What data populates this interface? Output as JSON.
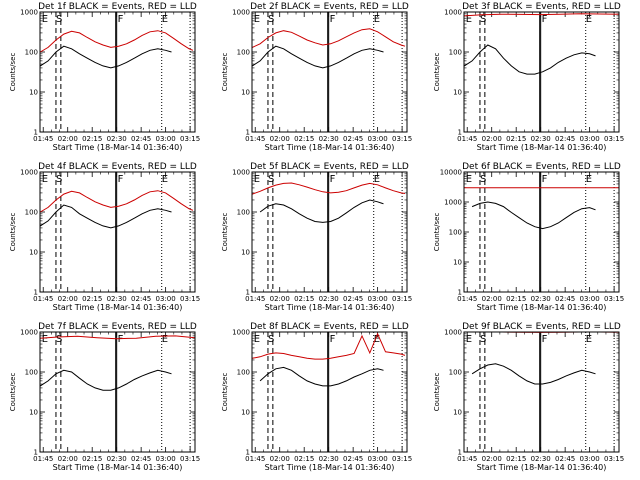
{
  "chart_data": [
    {
      "type": "line",
      "title": "Det 1f BLACK = Events, RED = LLD",
      "xlabel": "Start Time (18-Mar-14 01:36:40)",
      "ylabel": "Counts/sec",
      "yscale": "log",
      "ylim": [
        1,
        1000
      ],
      "y_ticks": [
        "1",
        "10",
        "100",
        "1000"
      ],
      "xlim": [
        1.717,
        3.3
      ],
      "x_ticks": [
        "01:45",
        "02:00",
        "02:15",
        "02:30",
        "02:45",
        "03:00",
        "03:15"
      ],
      "markers": [
        "E",
        "S",
        "F",
        "E"
      ],
      "series": [
        {
          "name": "Events",
          "color": "#000000",
          "x": [
            1.72,
            1.8,
            1.88,
            1.96,
            2.04,
            2.12,
            2.2,
            2.28,
            2.36,
            2.44,
            2.52,
            2.6,
            2.68,
            2.76,
            2.84,
            2.92,
            3.0,
            3.06
          ],
          "y": [
            45,
            60,
            100,
            140,
            120,
            90,
            70,
            55,
            45,
            40,
            45,
            55,
            70,
            90,
            110,
            120,
            110,
            100
          ]
        },
        {
          "name": "LLD",
          "color": "#cc0000",
          "x": [
            1.72,
            1.8,
            1.88,
            1.96,
            2.04,
            2.12,
            2.2,
            2.28,
            2.36,
            2.44,
            2.52,
            2.6,
            2.68,
            2.76,
            2.84,
            2.92,
            3.0,
            3.08,
            3.16,
            3.24,
            3.28
          ],
          "y": [
            100,
            130,
            200,
            280,
            330,
            300,
            230,
            180,
            150,
            130,
            140,
            160,
            200,
            260,
            320,
            340,
            300,
            220,
            160,
            120,
            110
          ]
        }
      ]
    },
    {
      "type": "line",
      "title": "Det 2f BLACK = Events, RED = LLD",
      "xlabel": "Start Time (18-Mar-14 01:36:40)",
      "ylabel": "Counts/sec",
      "yscale": "log",
      "ylim": [
        1,
        1000
      ],
      "y_ticks": [
        "1",
        "10",
        "100",
        "1000"
      ],
      "xlim": [
        1.717,
        3.3
      ],
      "x_ticks": [
        "01:45",
        "02:00",
        "02:15",
        "02:30",
        "02:45",
        "03:00",
        "03:15"
      ],
      "markers": [
        "E",
        "S",
        "F",
        "E"
      ],
      "series": [
        {
          "name": "Events",
          "color": "#000000",
          "x": [
            1.72,
            1.8,
            1.88,
            1.96,
            2.04,
            2.12,
            2.2,
            2.28,
            2.36,
            2.44,
            2.52,
            2.6,
            2.68,
            2.76,
            2.84,
            2.92,
            3.0,
            3.06
          ],
          "y": [
            45,
            60,
            100,
            140,
            120,
            90,
            70,
            55,
            45,
            40,
            45,
            55,
            70,
            90,
            110,
            120,
            110,
            100
          ]
        },
        {
          "name": "LLD",
          "color": "#cc0000",
          "x": [
            1.72,
            1.8,
            1.88,
            1.96,
            2.04,
            2.12,
            2.2,
            2.28,
            2.36,
            2.44,
            2.52,
            2.6,
            2.68,
            2.76,
            2.84,
            2.92,
            3.0,
            3.08,
            3.16,
            3.24,
            3.28
          ],
          "y": [
            130,
            160,
            230,
            300,
            340,
            310,
            250,
            200,
            170,
            150,
            160,
            190,
            240,
            300,
            360,
            380,
            320,
            240,
            180,
            150,
            140
          ]
        }
      ]
    },
    {
      "type": "line",
      "title": "Det 3f BLACK = Events, RED = LLD",
      "xlabel": "Start Time (18-Mar-14 01:36:40)",
      "ylabel": "Counts/sec",
      "yscale": "log",
      "ylim": [
        1,
        1000
      ],
      "y_ticks": [
        "1",
        "10",
        "100",
        "1000"
      ],
      "xlim": [
        1.717,
        3.3
      ],
      "x_ticks": [
        "01:45",
        "02:00",
        "02:15",
        "02:30",
        "02:45",
        "03:00",
        "03:15"
      ],
      "markers": [
        "E",
        "S",
        "F",
        "E"
      ],
      "series": [
        {
          "name": "Events",
          "color": "#000000",
          "x": [
            1.72,
            1.8,
            1.88,
            1.96,
            2.04,
            2.12,
            2.2,
            2.28,
            2.36,
            2.44,
            2.52,
            2.6,
            2.68,
            2.76,
            2.84,
            2.92,
            3.0,
            3.06
          ],
          "y": [
            45,
            60,
            100,
            150,
            120,
            70,
            45,
            32,
            28,
            28,
            32,
            40,
            55,
            70,
            85,
            95,
            90,
            80
          ]
        },
        {
          "name": "LLD",
          "color": "#cc0000",
          "x": [
            1.72,
            1.9,
            2.1,
            2.3,
            2.5,
            2.7,
            2.9,
            3.1,
            3.3
          ],
          "y": [
            800,
            850,
            880,
            870,
            860,
            880,
            900,
            890,
            880
          ]
        }
      ]
    },
    {
      "type": "line",
      "title": "Det 4f BLACK = Events, RED = LLD",
      "xlabel": "Start Time (18-Mar-14 01:36:40)",
      "ylabel": "Counts/sec",
      "yscale": "log",
      "ylim": [
        1,
        1000
      ],
      "y_ticks": [
        "1",
        "10",
        "100",
        "1000"
      ],
      "xlim": [
        1.717,
        3.3
      ],
      "x_ticks": [
        "01:45",
        "02:00",
        "02:15",
        "02:30",
        "02:45",
        "03:00",
        "03:15"
      ],
      "markers": [
        "E",
        "S",
        "F",
        "E"
      ],
      "series": [
        {
          "name": "Events",
          "color": "#000000",
          "x": [
            1.72,
            1.8,
            1.88,
            1.96,
            2.04,
            2.12,
            2.2,
            2.28,
            2.36,
            2.44,
            2.52,
            2.6,
            2.68,
            2.76,
            2.84,
            2.92,
            3.0,
            3.06
          ],
          "y": [
            45,
            60,
            100,
            150,
            130,
            90,
            70,
            55,
            45,
            40,
            45,
            55,
            70,
            90,
            110,
            120,
            110,
            100
          ]
        },
        {
          "name": "LLD",
          "color": "#cc0000",
          "x": [
            1.72,
            1.8,
            1.88,
            1.96,
            2.04,
            2.12,
            2.2,
            2.28,
            2.36,
            2.44,
            2.52,
            2.6,
            2.68,
            2.76,
            2.84,
            2.92,
            3.0,
            3.08,
            3.16,
            3.24,
            3.28
          ],
          "y": [
            100,
            130,
            200,
            280,
            330,
            300,
            230,
            180,
            150,
            130,
            140,
            160,
            200,
            260,
            320,
            340,
            300,
            220,
            160,
            120,
            110
          ]
        }
      ]
    },
    {
      "type": "line",
      "title": "Det 5f BLACK = Events, RED = LLD",
      "xlabel": "Start Time (18-Mar-14 01:36:40)",
      "ylabel": "Counts/sec",
      "yscale": "log",
      "ylim": [
        1,
        1000
      ],
      "y_ticks": [
        "1",
        "10",
        "100",
        "1000"
      ],
      "xlim": [
        1.717,
        3.3
      ],
      "x_ticks": [
        "01:45",
        "02:00",
        "02:15",
        "02:30",
        "02:45",
        "03:00",
        "03:15"
      ],
      "markers": [
        "E",
        "S",
        "F",
        "E"
      ],
      "series": [
        {
          "name": "Events",
          "color": "#000000",
          "x": [
            1.8,
            1.88,
            1.96,
            2.04,
            2.12,
            2.2,
            2.28,
            2.36,
            2.44,
            2.52,
            2.6,
            2.68,
            2.76,
            2.84,
            2.92,
            3.0,
            3.06
          ],
          "y": [
            100,
            140,
            160,
            150,
            120,
            90,
            70,
            58,
            55,
            58,
            70,
            95,
            130,
            170,
            200,
            180,
            160
          ]
        },
        {
          "name": "LLD",
          "color": "#cc0000",
          "x": [
            1.72,
            1.8,
            1.88,
            1.96,
            2.04,
            2.12,
            2.2,
            2.28,
            2.36,
            2.44,
            2.52,
            2.6,
            2.68,
            2.76,
            2.84,
            2.92,
            3.0,
            3.08,
            3.16,
            3.24,
            3.28
          ],
          "y": [
            280,
            330,
            400,
            470,
            520,
            530,
            480,
            420,
            360,
            320,
            300,
            310,
            340,
            400,
            470,
            520,
            480,
            400,
            340,
            300,
            290
          ]
        }
      ]
    },
    {
      "type": "line",
      "title": "Det 6f BLACK = Events, RED = LLD",
      "xlabel": "Start Time (18-Mar-14 01:36:40)",
      "ylabel": "Counts/sec",
      "yscale": "log",
      "ylim": [
        1,
        10000
      ],
      "y_ticks": [
        "1",
        "10",
        "100",
        "1000",
        "10000"
      ],
      "xlim": [
        1.717,
        3.3
      ],
      "x_ticks": [
        "01:45",
        "02:00",
        "02:15",
        "02:30",
        "02:45",
        "03:00",
        "03:15"
      ],
      "markers": [
        "E",
        "S",
        "F",
        "E"
      ],
      "series": [
        {
          "name": "Events",
          "color": "#000000",
          "x": [
            1.8,
            1.88,
            1.96,
            2.04,
            2.12,
            2.2,
            2.28,
            2.36,
            2.44,
            2.52,
            2.6,
            2.68,
            2.76,
            2.84,
            2.92,
            3.0,
            3.06
          ],
          "y": [
            700,
            900,
            1000,
            900,
            700,
            450,
            300,
            200,
            150,
            130,
            150,
            200,
            300,
            450,
            600,
            650,
            550
          ]
        },
        {
          "name": "LLD",
          "color": "#cc0000",
          "x": [
            1.72,
            3.3
          ],
          "y": [
            3000,
            3000
          ]
        }
      ]
    },
    {
      "type": "line",
      "title": "Det 7f BLACK = Events, RED = LLD",
      "xlabel": "Start Time (18-Mar-14 01:36:40)",
      "ylabel": "Counts/sec",
      "yscale": "log",
      "ylim": [
        1,
        1000
      ],
      "y_ticks": [
        "1",
        "10",
        "100",
        "1000"
      ],
      "xlim": [
        1.717,
        3.3
      ],
      "x_ticks": [
        "01:45",
        "02:00",
        "02:15",
        "02:30",
        "02:45",
        "03:00",
        "03:15"
      ],
      "markers": [
        "E",
        "S",
        "F",
        "E"
      ],
      "series": [
        {
          "name": "Events",
          "color": "#000000",
          "x": [
            1.72,
            1.8,
            1.88,
            1.96,
            2.04,
            2.12,
            2.2,
            2.28,
            2.36,
            2.44,
            2.52,
            2.6,
            2.68,
            2.76,
            2.84,
            2.92,
            3.0,
            3.06
          ],
          "y": [
            45,
            60,
            90,
            110,
            100,
            70,
            50,
            40,
            35,
            35,
            40,
            50,
            65,
            80,
            95,
            110,
            100,
            90
          ]
        },
        {
          "name": "LLD",
          "color": "#cc0000",
          "x": [
            1.72,
            1.9,
            2.1,
            2.3,
            2.5,
            2.7,
            2.9,
            3.1,
            3.3
          ],
          "y": [
            700,
            750,
            780,
            720,
            680,
            700,
            780,
            800,
            720
          ]
        }
      ]
    },
    {
      "type": "line",
      "title": "Det 8f BLACK = Events, RED = LLD",
      "xlabel": "Start Time (18-Mar-14 01:36:40)",
      "ylabel": "Counts/sec",
      "yscale": "log",
      "ylim": [
        1,
        1000
      ],
      "y_ticks": [
        "1",
        "10",
        "100",
        "1000"
      ],
      "xlim": [
        1.717,
        3.3
      ],
      "x_ticks": [
        "01:45",
        "02:00",
        "02:15",
        "02:30",
        "02:45",
        "03:00",
        "03:15"
      ],
      "markers": [
        "E",
        "S",
        "F",
        "E"
      ],
      "series": [
        {
          "name": "Events",
          "color": "#000000",
          "x": [
            1.8,
            1.88,
            1.96,
            2.04,
            2.12,
            2.2,
            2.28,
            2.36,
            2.44,
            2.52,
            2.6,
            2.68,
            2.76,
            2.84,
            2.92,
            3.0,
            3.06
          ],
          "y": [
            60,
            90,
            120,
            130,
            110,
            80,
            60,
            50,
            45,
            45,
            50,
            60,
            75,
            90,
            110,
            120,
            110
          ]
        },
        {
          "name": "LLD",
          "color": "#cc0000",
          "x": [
            1.72,
            1.8,
            1.88,
            1.96,
            2.04,
            2.12,
            2.2,
            2.28,
            2.36,
            2.44,
            2.52,
            2.6,
            2.68,
            2.76,
            2.84,
            2.92,
            3.0,
            3.08,
            3.16,
            3.24,
            3.28
          ],
          "y": [
            220,
            240,
            280,
            300,
            290,
            260,
            240,
            220,
            210,
            210,
            220,
            240,
            260,
            290,
            800,
            300,
            900,
            320,
            300,
            280,
            260
          ]
        }
      ]
    },
    {
      "type": "line",
      "title": "Det 9f BLACK = Events, RED = LLD",
      "xlabel": "Start Time (18-Mar-14 01:36:40)",
      "ylabel": "Counts/sec",
      "yscale": "log",
      "ylim": [
        1,
        1000
      ],
      "y_ticks": [
        "1",
        "10",
        "100",
        "1000"
      ],
      "xlim": [
        1.717,
        3.3
      ],
      "x_ticks": [
        "01:45",
        "02:00",
        "02:15",
        "02:30",
        "02:45",
        "03:00",
        "03:15"
      ],
      "markers": [
        "E",
        "S",
        "F",
        "E"
      ],
      "series": [
        {
          "name": "Events",
          "color": "#000000",
          "x": [
            1.8,
            1.88,
            1.96,
            2.04,
            2.12,
            2.2,
            2.28,
            2.36,
            2.44,
            2.52,
            2.6,
            2.68,
            2.76,
            2.84,
            2.92,
            3.0,
            3.06
          ],
          "y": [
            90,
            120,
            150,
            160,
            140,
            110,
            80,
            60,
            50,
            50,
            55,
            65,
            80,
            95,
            110,
            100,
            90
          ]
        },
        {
          "name": "LLD",
          "color": "#cc0000",
          "x": [
            1.72,
            1.9,
            2.1,
            2.3,
            2.5,
            2.7,
            2.9,
            3.1,
            3.3
          ],
          "y": [
            1000,
            1000,
            1000,
            990,
            980,
            990,
            1000,
            1000,
            990
          ]
        }
      ]
    }
  ],
  "reference_lines": {
    "solid_x": [
      2.49,
      2.5
    ],
    "dashed_x": [
      1.88,
      1.93
    ],
    "dotted_x": [
      2.96,
      3.25
    ]
  }
}
